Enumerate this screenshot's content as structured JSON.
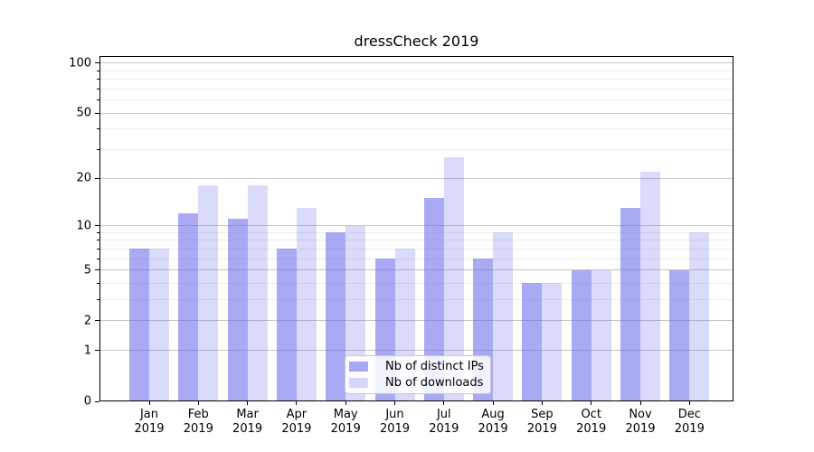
{
  "chart_data": {
    "type": "bar",
    "title": "dressCheck 2019",
    "categories": [
      "Jan",
      "Feb",
      "Mar",
      "Apr",
      "May",
      "Jun",
      "Jul",
      "Aug",
      "Sep",
      "Oct",
      "Nov",
      "Dec"
    ],
    "year": "2019",
    "series": [
      {
        "name": "Nb of distinct IPs",
        "color": "rgba(100,100,235,0.55)",
        "values": [
          7,
          12,
          11,
          7,
          9,
          6,
          15,
          6,
          4,
          5,
          13,
          5
        ]
      },
      {
        "name": "Nb of downloads",
        "color": "rgba(100,100,235,0.24)",
        "values": [
          7,
          18,
          18,
          13,
          10,
          7,
          27,
          9,
          4,
          5,
          22,
          9
        ]
      }
    ],
    "xlabel": "",
    "ylabel": "",
    "yscale": "log1p",
    "ylim": [
      0,
      110
    ],
    "yticks": [
      0,
      1,
      2,
      5,
      10,
      20,
      50,
      100
    ],
    "yticks_minor": [
      3,
      4,
      6,
      7,
      8,
      9,
      30,
      40,
      60,
      70,
      80,
      90
    ],
    "grid": true,
    "legend_position": "lower center",
    "colors": {
      "bar_dark": "rgba(100,100,235,0.55)",
      "bar_light": "rgba(100,100,235,0.24)",
      "grid_major": "#c6c6c6",
      "grid_minor": "#ececec",
      "axis": "#000000"
    }
  }
}
